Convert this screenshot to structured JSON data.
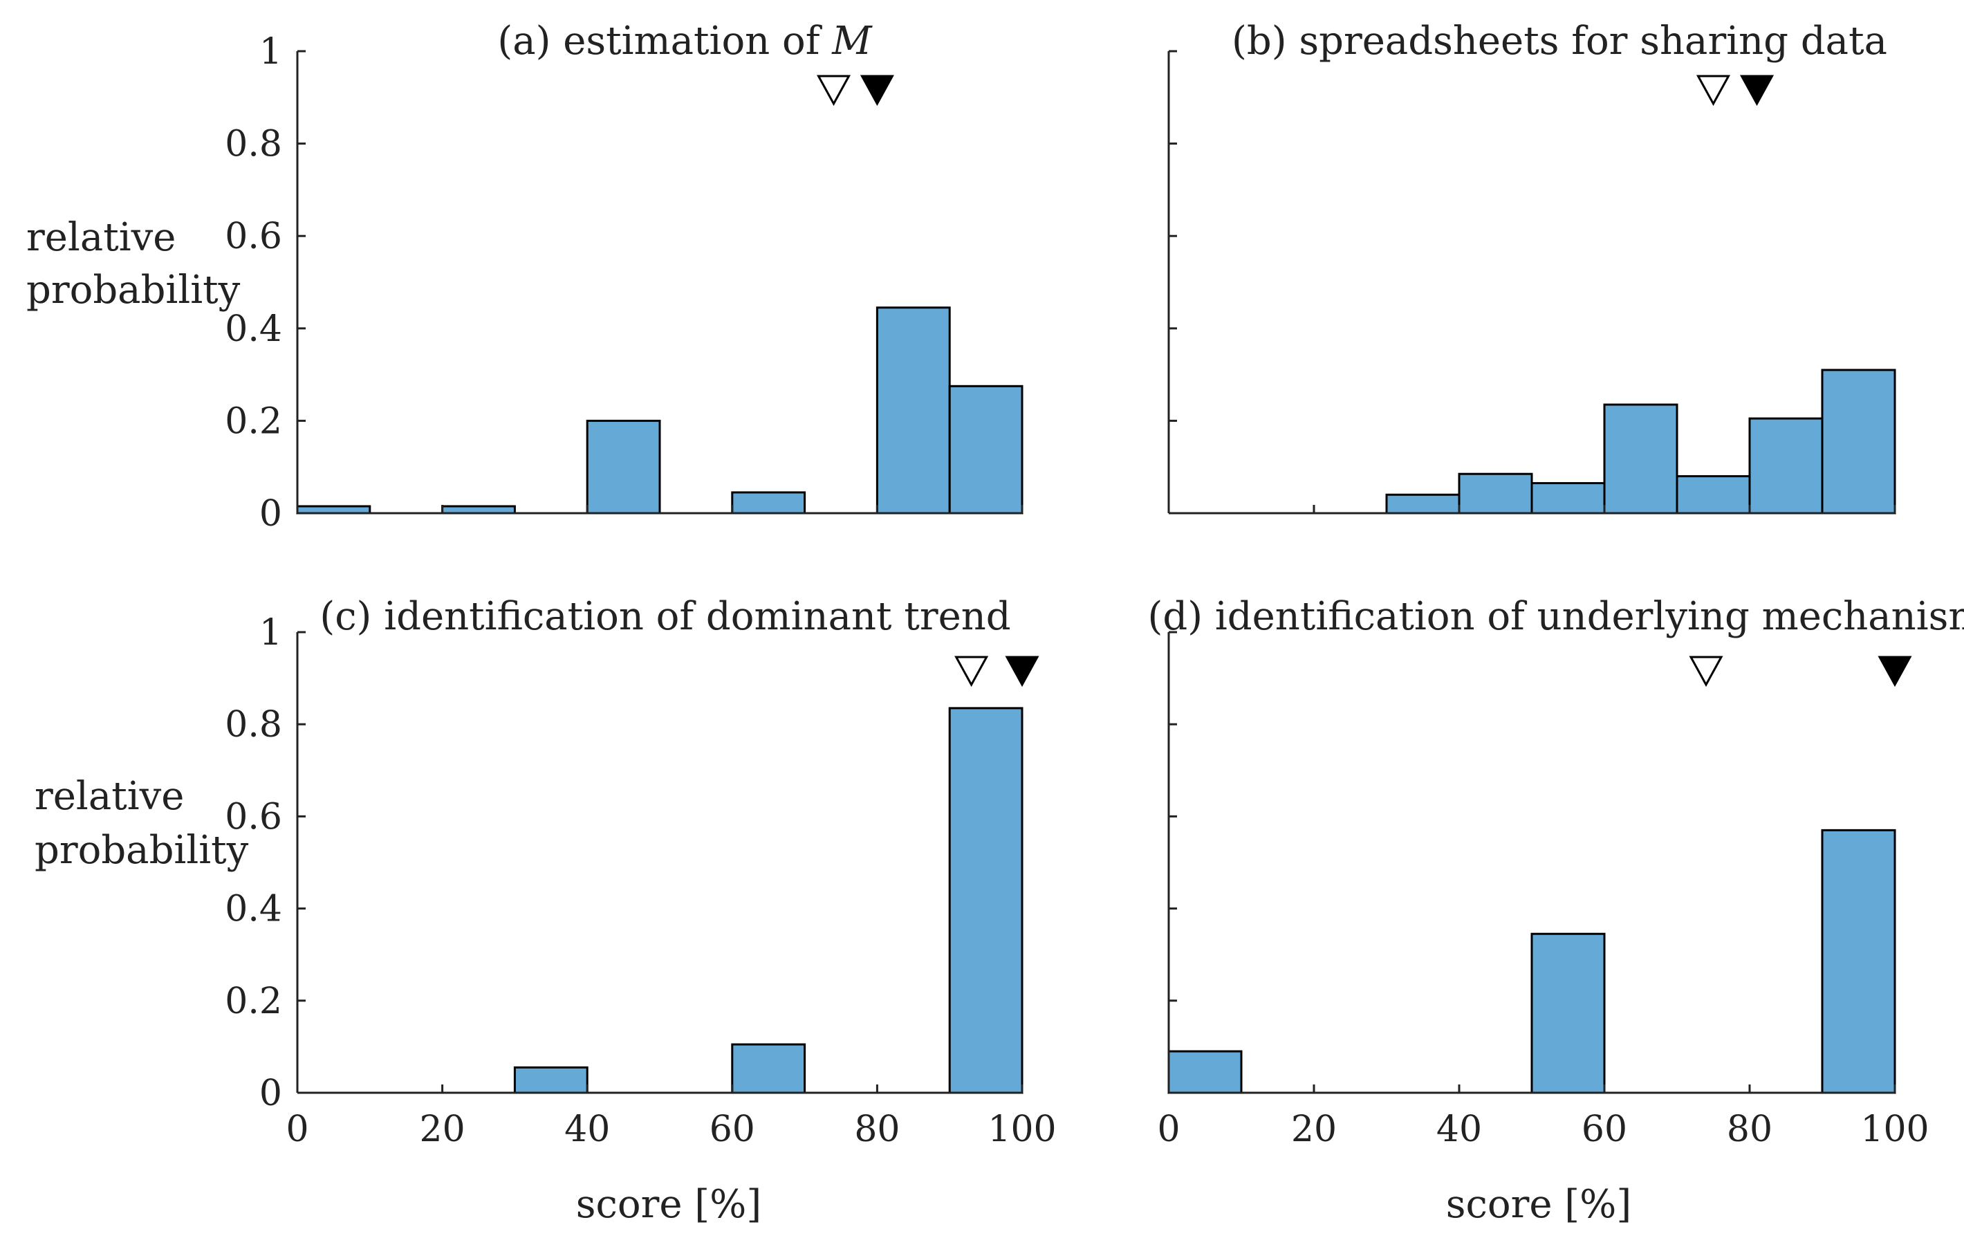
{
  "colors": {
    "bar_fill": "#65A9D7",
    "bar_stroke": "#000000",
    "axis": "#222222",
    "mean_marker_open": "#ffffff",
    "mean_marker_filled": "#000000"
  },
  "labels": {
    "ylabel_line1": "relative",
    "ylabel_line2": "probability",
    "xlabel": "score [%]"
  },
  "chart_data": [
    {
      "id": "a",
      "type": "bar",
      "title": "(a) estimation of ",
      "title_italic": "M",
      "bin_edges": [
        0,
        10,
        20,
        30,
        40,
        50,
        60,
        70,
        80,
        90,
        100
      ],
      "values": [
        0.015,
        0,
        0.015,
        0,
        0.2,
        0,
        0.045,
        0,
        0.445,
        0.275
      ],
      "xlim": [
        0,
        100
      ],
      "ylim": [
        0,
        1
      ],
      "yticks": [
        "0",
        "0.2",
        "0.4",
        "0.6",
        "0.8",
        "1"
      ],
      "xticks": [
        "0",
        "20",
        "40",
        "60",
        "80",
        "100"
      ],
      "markers": [
        {
          "kind": "open",
          "x": 74
        },
        {
          "kind": "filled",
          "x": 80
        }
      ]
    },
    {
      "id": "b",
      "type": "bar",
      "title": "(b) spreadsheets for sharing data",
      "bin_edges": [
        0,
        10,
        20,
        30,
        40,
        50,
        60,
        70,
        80,
        90,
        100
      ],
      "values": [
        0,
        0,
        0,
        0.04,
        0.085,
        0.065,
        0.235,
        0.08,
        0.205,
        0.31
      ],
      "xlim": [
        0,
        100
      ],
      "ylim": [
        0,
        1
      ],
      "yticks": [
        "0",
        "0.2",
        "0.4",
        "0.6",
        "0.8",
        "1"
      ],
      "xticks": [
        "0",
        "20",
        "40",
        "60",
        "80",
        "100"
      ],
      "markers": [
        {
          "kind": "open",
          "x": 75
        },
        {
          "kind": "filled",
          "x": 81
        }
      ]
    },
    {
      "id": "c",
      "type": "bar",
      "title": "(c) identification of dominant trend",
      "bin_edges": [
        0,
        10,
        20,
        30,
        40,
        50,
        60,
        70,
        80,
        90,
        100
      ],
      "values": [
        0,
        0,
        0,
        0.055,
        0,
        0,
        0.105,
        0,
        0,
        0.835
      ],
      "xlim": [
        0,
        100
      ],
      "ylim": [
        0,
        1
      ],
      "yticks": [
        "0",
        "0.2",
        "0.4",
        "0.6",
        "0.8",
        "1"
      ],
      "xticks": [
        "0",
        "20",
        "40",
        "60",
        "80",
        "100"
      ],
      "markers": [
        {
          "kind": "open",
          "x": 93
        },
        {
          "kind": "filled",
          "x": 100
        }
      ]
    },
    {
      "id": "d",
      "type": "bar",
      "title": "(d) identification of underlying mechanism",
      "bin_edges": [
        0,
        10,
        20,
        30,
        40,
        50,
        60,
        70,
        80,
        90,
        100
      ],
      "values": [
        0.09,
        0,
        0,
        0,
        0,
        0.345,
        0,
        0,
        0,
        0.57
      ],
      "xlim": [
        0,
        100
      ],
      "ylim": [
        0,
        1
      ],
      "yticks": [
        "0",
        "0.2",
        "0.4",
        "0.6",
        "0.8",
        "1"
      ],
      "xticks": [
        "0",
        "20",
        "40",
        "60",
        "80",
        "100"
      ],
      "markers": [
        {
          "kind": "open",
          "x": 74
        },
        {
          "kind": "filled",
          "x": 100
        }
      ]
    }
  ]
}
